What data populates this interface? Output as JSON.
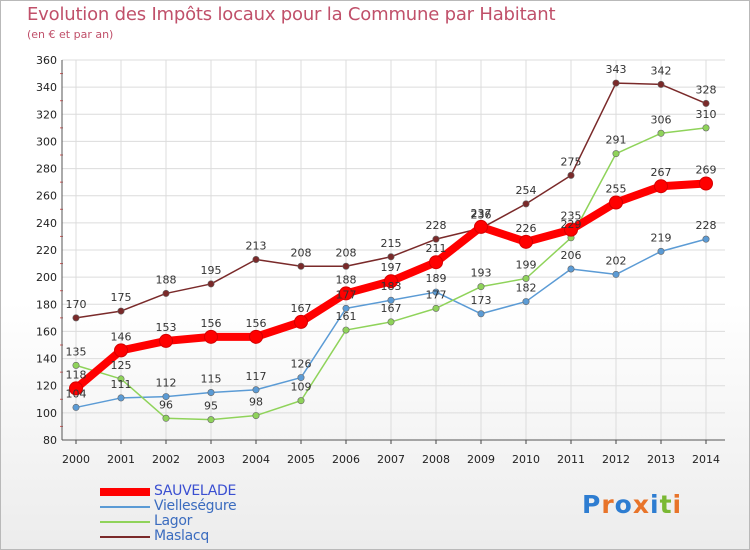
{
  "chart_data": {
    "type": "line",
    "title": "Evolution des Impôts locaux pour la Commune par Habitant",
    "subtitle": "(en € et par an)",
    "xlabel": "",
    "ylabel": "",
    "ylim": [
      80,
      360
    ],
    "yticks": [
      80,
      100,
      120,
      140,
      160,
      180,
      200,
      220,
      240,
      260,
      280,
      300,
      320,
      340,
      360
    ],
    "categories": [
      "2000",
      "2001",
      "2002",
      "2003",
      "2004",
      "2005",
      "2006",
      "2007",
      "2008",
      "2009",
      "2010",
      "2011",
      "2012",
      "2013",
      "2014"
    ],
    "grid": true,
    "series": [
      {
        "name": "SAUVELADE",
        "color": "#ff0000",
        "highlight": true,
        "values": [
          118,
          146,
          153,
          156,
          156,
          167,
          188,
          197,
          211,
          237,
          226,
          235,
          255,
          267,
          269
        ],
        "labels": [
          "118",
          "146",
          "153",
          "156",
          "156",
          "167",
          "188",
          "197",
          "211",
          "237",
          "226",
          "235",
          "255",
          "267",
          "269"
        ]
      },
      {
        "name": "Vielleségure",
        "color": "#5b9bd5",
        "values": [
          104,
          111,
          112,
          115,
          117,
          126,
          177,
          183,
          189,
          173,
          182,
          206,
          202,
          219,
          228
        ],
        "labels": [
          "104",
          "111",
          "112",
          "115",
          "117",
          "126",
          "177",
          "183",
          "189",
          "173",
          "182",
          "206",
          "202",
          "219",
          "228"
        ]
      },
      {
        "name": "Lagor",
        "color": "#8fd35a",
        "values": [
          135,
          125,
          96,
          95,
          98,
          109,
          161,
          167,
          177,
          193,
          199,
          229,
          291,
          306,
          310
        ],
        "labels": [
          "135",
          "125",
          "96",
          "95",
          "98",
          "109",
          "161",
          "167",
          "177",
          "193",
          "199",
          "229",
          "291",
          "306",
          "310"
        ]
      },
      {
        "name": "Maslacq",
        "color": "#7a2a2a",
        "values": [
          170,
          175,
          188,
          195,
          213,
          208,
          208,
          215,
          228,
          236,
          254,
          275,
          343,
          342,
          328
        ],
        "labels": [
          "170",
          "175",
          "188",
          "195",
          "213",
          "208",
          "208",
          "215",
          "228",
          "236",
          "254",
          "275",
          "343",
          "342",
          "328"
        ]
      }
    ],
    "legend": "bottom-left"
  },
  "logo": {
    "text": "Proxiti",
    "letters": [
      "P",
      "r",
      "o",
      "x",
      "i",
      "t",
      "i"
    ],
    "colors": [
      "#2e7dd1",
      "#e8742a",
      "#2e7dd1",
      "#e8742a",
      "#2e7dd1",
      "#7ab833",
      "#e8742a"
    ]
  }
}
